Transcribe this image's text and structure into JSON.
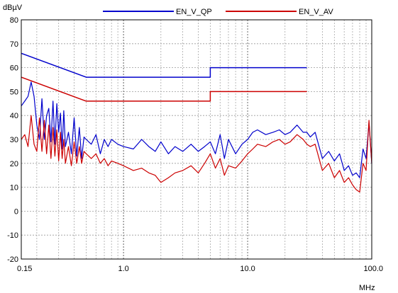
{
  "chart_data": {
    "type": "line",
    "ylabel": "dBµV",
    "xlabel": "MHz",
    "x_scale": "log",
    "xlim": [
      0.15,
      100.0
    ],
    "ylim": [
      -20,
      80
    ],
    "grid": true,
    "legend_placement": "top",
    "x_tick_labels": [
      "0.15",
      "1.0",
      "10.0",
      "100.0"
    ],
    "y_tick_labels": [
      "80",
      "70",
      "60",
      "50",
      "40",
      "30",
      "20",
      "10",
      "0",
      "-10",
      "-20"
    ],
    "series": [
      {
        "name": "EN_V_QP",
        "color": "#0000cc",
        "style": "step-limit",
        "x": [
          0.15,
          0.5,
          0.5,
          5.0,
          5.0,
          30.0
        ],
        "y": [
          66,
          56,
          56,
          56,
          60,
          60
        ]
      },
      {
        "name": "EN_V_AV",
        "color": "#cc0000",
        "style": "step-limit",
        "x": [
          0.15,
          0.5,
          0.5,
          5.0,
          5.0,
          30.0
        ],
        "y": [
          56,
          46,
          46,
          46,
          50,
          50
        ]
      },
      {
        "name": "",
        "color": "#0000cc",
        "style": "trace",
        "x": [
          0.15,
          0.16,
          0.17,
          0.18,
          0.19,
          0.2,
          0.21,
          0.22,
          0.23,
          0.24,
          0.25,
          0.26,
          0.27,
          0.28,
          0.29,
          0.3,
          0.31,
          0.32,
          0.33,
          0.34,
          0.36,
          0.38,
          0.4,
          0.42,
          0.44,
          0.46,
          0.48,
          0.5,
          0.55,
          0.6,
          0.65,
          0.7,
          0.75,
          0.8,
          0.9,
          1.0,
          1.2,
          1.4,
          1.6,
          1.8,
          2.0,
          2.3,
          2.6,
          3.0,
          3.5,
          4.0,
          4.5,
          5.0,
          5.5,
          6.0,
          6.5,
          7.0,
          8.0,
          9.0,
          10.0,
          11.0,
          12.0,
          14.0,
          16.0,
          18.0,
          20.0,
          22.0,
          25.0,
          28.0,
          30.0,
          32.0,
          35.0,
          40.0,
          45.0,
          50.0,
          55.0,
          60.0,
          65.0,
          70.0,
          75.0,
          80.0,
          85.0,
          90.0,
          95.0,
          100.0
        ],
        "y": [
          44,
          46,
          48,
          54,
          48,
          36,
          30,
          47,
          30,
          40,
          43,
          29,
          46,
          28,
          45,
          33,
          41,
          26,
          42,
          27,
          33,
          24,
          39,
          23,
          35,
          22,
          31,
          30,
          28,
          32,
          24,
          30,
          27,
          30,
          28,
          27,
          26,
          30,
          27,
          25,
          29,
          24,
          27,
          25,
          28,
          25,
          27,
          29,
          24,
          32,
          22,
          30,
          24,
          28,
          30,
          33,
          34,
          32,
          33,
          34,
          32,
          33,
          36,
          33,
          33,
          31,
          33,
          22,
          25,
          21,
          24,
          17,
          19,
          15,
          16,
          14,
          26,
          22,
          37,
          20
        ]
      },
      {
        "name": "",
        "color": "#cc0000",
        "style": "trace",
        "x": [
          0.15,
          0.16,
          0.17,
          0.18,
          0.19,
          0.2,
          0.21,
          0.22,
          0.23,
          0.24,
          0.25,
          0.26,
          0.27,
          0.28,
          0.29,
          0.3,
          0.31,
          0.32,
          0.33,
          0.34,
          0.36,
          0.38,
          0.4,
          0.42,
          0.44,
          0.46,
          0.48,
          0.5,
          0.55,
          0.6,
          0.65,
          0.7,
          0.75,
          0.8,
          0.9,
          1.0,
          1.2,
          1.4,
          1.6,
          1.8,
          2.0,
          2.3,
          2.6,
          3.0,
          3.5,
          4.0,
          4.5,
          5.0,
          5.5,
          6.0,
          6.5,
          7.0,
          8.0,
          9.0,
          10.0,
          11.0,
          12.0,
          14.0,
          16.0,
          18.0,
          20.0,
          22.0,
          25.0,
          28.0,
          30.0,
          32.0,
          35.0,
          40.0,
          45.0,
          50.0,
          55.0,
          60.0,
          65.0,
          70.0,
          75.0,
          80.0,
          85.0,
          90.0,
          95.0,
          100.0
        ],
        "y": [
          30,
          32,
          27,
          40,
          28,
          25,
          39,
          25,
          38,
          24,
          36,
          22,
          35,
          23,
          34,
          21,
          33,
          22,
          30,
          20,
          27,
          19,
          29,
          20,
          27,
          20,
          25,
          24,
          22,
          24,
          20,
          22,
          19,
          21,
          20,
          19,
          17,
          18,
          16,
          15,
          12,
          14,
          16,
          17,
          19,
          16,
          20,
          24,
          18,
          22,
          15,
          19,
          18,
          21,
          24,
          26,
          28,
          27,
          29,
          30,
          28,
          29,
          32,
          30,
          28,
          27,
          28,
          17,
          20,
          14,
          17,
          12,
          14,
          11,
          9,
          8,
          20,
          17,
          38,
          20
        ]
      }
    ]
  }
}
